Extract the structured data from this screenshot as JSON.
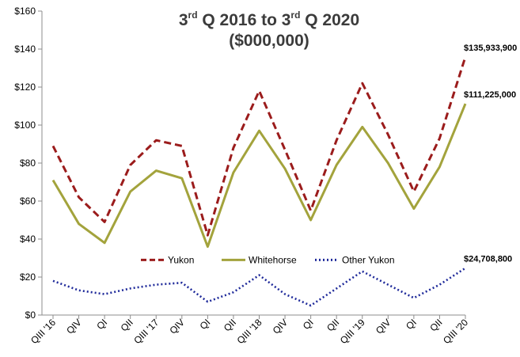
{
  "chart_data": {
    "type": "line",
    "title": {
      "line1_a": "3",
      "line1_a_sup": "rd",
      "line1_b": " Q 2016 to 3",
      "line1_b_sup": "rd",
      "line1_c": " Q 2020",
      "line2": "($000,000)"
    },
    "xlabel": "",
    "ylabel": "",
    "ylim": [
      0,
      160
    ],
    "yticks": [
      0,
      20,
      40,
      60,
      80,
      100,
      120,
      140,
      160
    ],
    "ytick_labels": [
      "$0",
      "$20",
      "$40",
      "$60",
      "$80",
      "$100",
      "$120",
      "$140",
      "$160"
    ],
    "categories": [
      "QIII '16",
      "QIV",
      "QI",
      "QII",
      "QIII '17",
      "QIV",
      "QI",
      "QII",
      "QIII '18",
      "QIV",
      "QI",
      "QII",
      "QIII '19",
      "QIV",
      "QI",
      "QII",
      "QIII '20"
    ],
    "grid": false,
    "legend_position": "center",
    "series": [
      {
        "name": "Yukon",
        "color": "#9b1c1c",
        "dash": "dashed",
        "values": [
          89,
          62,
          49,
          79,
          92,
          89,
          42,
          88,
          118,
          87,
          55,
          92,
          122,
          95,
          65,
          93,
          135.9
        ],
        "end_label": "$135,933,900"
      },
      {
        "name": "Whitehorse",
        "color": "#a3a33c",
        "dash": "solid",
        "values": [
          71,
          48,
          38,
          65,
          76,
          72,
          36,
          75,
          97,
          77,
          50,
          79,
          99,
          80,
          56,
          78,
          111.2
        ],
        "end_label": "$111,225,000"
      },
      {
        "name": "Other Yukon",
        "color": "#1f2a9a",
        "dash": "dotted",
        "values": [
          18,
          13,
          11,
          14,
          16,
          17,
          7,
          12,
          21,
          11,
          5,
          14,
          23,
          16,
          9,
          16,
          24.7
        ],
        "end_label": "$24,708,800"
      }
    ]
  }
}
